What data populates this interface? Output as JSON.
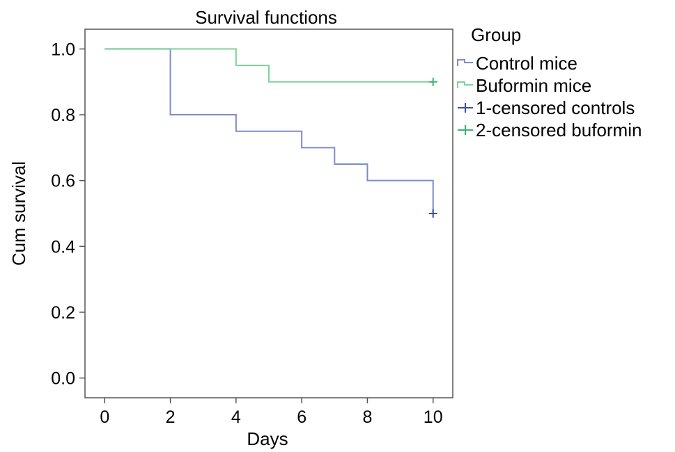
{
  "chart_data": {
    "type": "line",
    "title": "Survival functions",
    "xlabel": "Days",
    "ylabel": "Cum survival",
    "xlim": [
      -0.6,
      10.6
    ],
    "ylim": [
      -0.06,
      1.06
    ],
    "x_ticks": [
      "0",
      "2",
      "4",
      "6",
      "8",
      "10"
    ],
    "x_tick_values": [
      0,
      2,
      4,
      6,
      8,
      10
    ],
    "y_ticks": [
      "0.0",
      "0.2",
      "0.4",
      "0.6",
      "0.8",
      "1.0"
    ],
    "y_tick_values": [
      0,
      0.2,
      0.4,
      0.6,
      0.8,
      1.0
    ],
    "grid": false,
    "legend": {
      "title": "Group",
      "position": "right",
      "entries": [
        {
          "label": "Control mice",
          "kind": "step",
          "color": "#7b8ec8"
        },
        {
          "label": "Buformin mice",
          "kind": "step",
          "color": "#7ed39a"
        },
        {
          "label": "1-censored controls",
          "kind": "censor",
          "color": "#3a4fa0"
        },
        {
          "label": "2-censored buformin",
          "kind": "censor",
          "color": "#3cb371"
        }
      ]
    },
    "series": [
      {
        "name": "Control mice",
        "color": "#7b8ec8",
        "censor_color": "#3a4fa0",
        "steps": [
          {
            "x": 0,
            "y": 1.0
          },
          {
            "x": 2,
            "y": 0.8
          },
          {
            "x": 4,
            "y": 0.75
          },
          {
            "x": 6,
            "y": 0.7
          },
          {
            "x": 7,
            "y": 0.65
          },
          {
            "x": 8,
            "y": 0.6
          },
          {
            "x": 10,
            "y": 0.5
          }
        ],
        "censored": [
          {
            "x": 10,
            "y": 0.5
          }
        ]
      },
      {
        "name": "Buformin mice",
        "color": "#7ed39a",
        "censor_color": "#3cb371",
        "steps": [
          {
            "x": 0,
            "y": 1.0
          },
          {
            "x": 4,
            "y": 0.95
          },
          {
            "x": 5,
            "y": 0.9
          }
        ],
        "end_x": 10,
        "censored": [
          {
            "x": 10,
            "y": 0.9
          }
        ]
      }
    ]
  }
}
